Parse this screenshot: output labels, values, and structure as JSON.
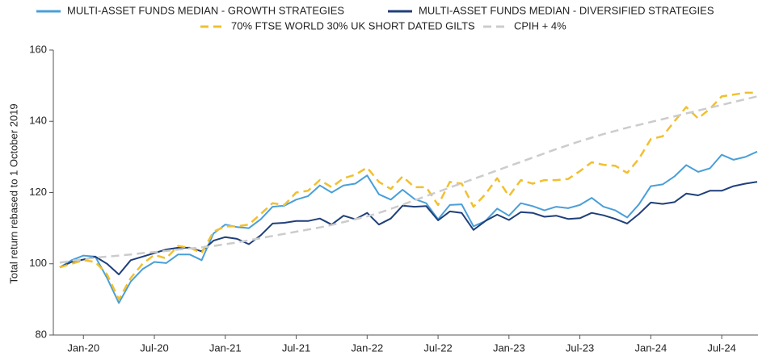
{
  "chart_data": {
    "type": "line",
    "y_label": "Total return rebased to 1 October 2019",
    "categories": [
      null,
      null,
      "Jan-20",
      null,
      null,
      null,
      null,
      null,
      "Jul-20",
      null,
      null,
      null,
      null,
      null,
      "Jan-21",
      null,
      null,
      null,
      null,
      null,
      "Jul-21",
      null,
      null,
      null,
      null,
      null,
      "Jan-22",
      null,
      null,
      null,
      null,
      null,
      "Jul-22",
      null,
      null,
      null,
      null,
      null,
      "Jan-23",
      null,
      null,
      null,
      null,
      null,
      "Jul-23",
      null,
      null,
      null,
      null,
      null,
      "Jan-24",
      null,
      null,
      null,
      null,
      null,
      "Jul-24",
      null,
      null,
      null
    ],
    "ylim": [
      80,
      160
    ],
    "yticks": [
      80,
      100,
      120,
      140,
      160
    ],
    "grid": false,
    "legend": "top",
    "series": [
      {
        "name": "MULTI-ASSET FUNDS MEDIAN - GROWTH STRATEGIES",
        "color": "#4a9fd8",
        "dashed": false,
        "values": [
          99,
          101,
          102.3,
          102,
          96,
          89,
          95,
          98.5,
          100.5,
          100.2,
          102.6,
          102.6,
          101,
          108.5,
          111,
          110.3,
          110,
          112.5,
          116,
          116.3,
          118,
          119,
          122,
          120,
          122,
          122.5,
          124.8,
          119.5,
          118,
          120.8,
          118.2,
          117,
          112.5,
          116.5,
          116.7,
          110.5,
          112,
          115.5,
          113.5,
          117,
          116.2,
          115,
          116,
          115.6,
          116.5,
          118.5,
          116,
          115,
          113,
          116.7,
          121.8,
          122.3,
          124.5,
          127.7,
          125.8,
          126.8,
          130.6,
          129.2,
          130,
          131.5
        ]
      },
      {
        "name": "MULTI-ASSET FUNDS MEDIAN - DIVERSIFIED STRATEGIES",
        "color": "#1f3f7a",
        "dashed": false,
        "values": [
          99,
          100.5,
          101.2,
          102,
          100,
          97,
          101,
          102,
          103,
          104,
          104.5,
          104.5,
          103.5,
          106.5,
          107.5,
          107,
          105.5,
          108,
          111.3,
          111.5,
          112,
          112,
          112.7,
          111,
          113.5,
          112.5,
          114.3,
          111,
          112.7,
          116.3,
          116,
          116.2,
          112.2,
          114.7,
          114.3,
          109.5,
          112,
          113.8,
          112.3,
          114.5,
          114.3,
          113.2,
          113.5,
          112.6,
          112.8,
          114.3,
          113.6,
          112.6,
          111.3,
          114,
          117.2,
          116.8,
          117.3,
          119.7,
          119.2,
          120.5,
          120.5,
          121.8,
          122.5,
          123
        ]
      },
      {
        "name": "70% FTSE WORLD 30% UK SHORT DATED GILTS",
        "color": "#f0c030",
        "dashed": true,
        "values": [
          99,
          100,
          101,
          100.5,
          97,
          90,
          96,
          100,
          102.5,
          101.5,
          105,
          104.5,
          103,
          109,
          110.5,
          110.5,
          111,
          114,
          117,
          116.5,
          120,
          120.5,
          123.5,
          121.5,
          124,
          125,
          127,
          123,
          121,
          124.5,
          121.5,
          121.5,
          116.5,
          123,
          122.5,
          116,
          119.5,
          124,
          119,
          123.5,
          122.5,
          123.5,
          123.5,
          123.8,
          126,
          128.5,
          127.8,
          127.5,
          125.5,
          129.5,
          135,
          135.8,
          140,
          144,
          140.8,
          143.5,
          147,
          147.5,
          148,
          148
        ]
      },
      {
        "name": "CPIH + 4%",
        "color": "#cccccc",
        "dashed": true,
        "values": [
          100.3,
          100.8,
          101.3,
          101.7,
          102,
          102.3,
          102.6,
          103,
          103.3,
          103.6,
          104,
          104.3,
          104.6,
          105,
          105.5,
          106,
          106.6,
          107.2,
          107.8,
          108.4,
          109,
          109.6,
          110.2,
          110.9,
          111.7,
          112.5,
          113.3,
          114.3,
          115.4,
          116.6,
          117.8,
          119,
          120.2,
          121.4,
          122.6,
          123.8,
          125,
          126.2,
          127.4,
          128.6,
          129.8,
          131,
          132.2,
          133.3,
          134.4,
          135.4,
          136.4,
          137.3,
          138.2,
          139,
          139.8,
          140.6,
          141.4,
          142.2,
          143,
          143.8,
          144.6,
          145.4,
          146.2,
          147
        ]
      }
    ]
  }
}
